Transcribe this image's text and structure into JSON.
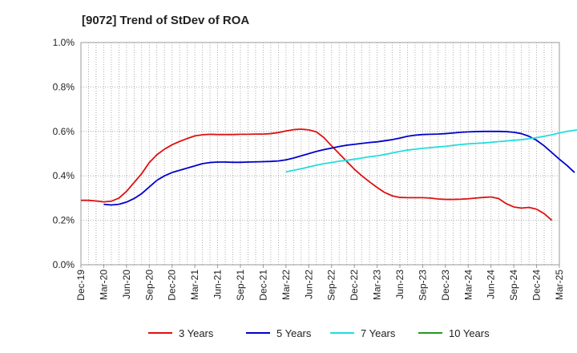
{
  "chart_data": {
    "type": "line",
    "title": "[9072]  Trend of StDev of ROA",
    "xlabel": "",
    "ylabel": "",
    "ylim": [
      0,
      1.0
    ],
    "y_ticks": [
      0,
      0.2,
      0.4,
      0.6,
      0.8,
      1.0
    ],
    "y_tick_labels": [
      "0.0%",
      "0.2%",
      "0.4%",
      "0.6%",
      "0.8%",
      "1.0%"
    ],
    "x_tick_labels": [
      "Dec-19",
      "Mar-20",
      "Jun-20",
      "Sep-20",
      "Dec-20",
      "Mar-21",
      "Jun-21",
      "Sep-21",
      "Dec-21",
      "Mar-22",
      "Jun-22",
      "Sep-22",
      "Dec-22",
      "Mar-23",
      "Jun-23",
      "Sep-23",
      "Dec-23",
      "Mar-24",
      "Jun-24",
      "Sep-24",
      "Dec-24",
      "Mar-25"
    ],
    "grid": true,
    "legend_position": "bottom",
    "series": [
      {
        "name": "3 Years",
        "color": "#dd1111",
        "start_month": 0,
        "values": [
          0.29,
          0.29,
          0.287,
          0.283,
          0.286,
          0.3,
          0.33,
          0.37,
          0.41,
          0.46,
          0.495,
          0.52,
          0.54,
          0.555,
          0.568,
          0.58,
          0.585,
          0.587,
          0.586,
          0.586,
          0.586,
          0.587,
          0.587,
          0.588,
          0.588,
          0.59,
          0.595,
          0.602,
          0.608,
          0.61,
          0.607,
          0.598,
          0.572,
          0.535,
          0.5,
          0.465,
          0.43,
          0.4,
          0.373,
          0.348,
          0.325,
          0.31,
          0.303,
          0.302,
          0.302,
          0.302,
          0.3,
          0.296,
          0.294,
          0.294,
          0.295,
          0.297,
          0.3,
          0.303,
          0.305,
          0.298,
          0.275,
          0.26,
          0.255,
          0.258,
          0.25,
          0.23,
          0.2
        ]
      },
      {
        "name": "5 Years",
        "color": "#0000cc",
        "start_month": 3,
        "values": [
          0.272,
          0.269,
          0.272,
          0.282,
          0.298,
          0.32,
          0.35,
          0.38,
          0.4,
          0.415,
          0.425,
          0.435,
          0.445,
          0.455,
          0.46,
          0.462,
          0.462,
          0.461,
          0.461,
          0.462,
          0.463,
          0.464,
          0.465,
          0.467,
          0.472,
          0.48,
          0.49,
          0.5,
          0.51,
          0.518,
          0.525,
          0.532,
          0.538,
          0.542,
          0.546,
          0.55,
          0.553,
          0.558,
          0.563,
          0.57,
          0.578,
          0.583,
          0.586,
          0.587,
          0.588,
          0.59,
          0.593,
          0.596,
          0.598,
          0.599,
          0.6,
          0.6,
          0.6,
          0.599,
          0.596,
          0.59,
          0.578,
          0.56,
          0.535,
          0.505,
          0.475,
          0.447,
          0.415
        ]
      },
      {
        "name": "7 Years",
        "color": "#22dddd",
        "start_month": 27,
        "values": [
          0.418,
          0.425,
          0.432,
          0.44,
          0.448,
          0.455,
          0.46,
          0.466,
          0.47,
          0.475,
          0.48,
          0.486,
          0.49,
          0.496,
          0.503,
          0.51,
          0.516,
          0.52,
          0.524,
          0.527,
          0.53,
          0.533,
          0.537,
          0.541,
          0.544,
          0.546,
          0.548,
          0.551,
          0.554,
          0.557,
          0.56,
          0.563,
          0.567,
          0.572,
          0.578,
          0.585,
          0.593,
          0.6,
          0.605,
          0.608,
          0.61
        ]
      },
      {
        "name": "10 Years",
        "color": "#229922",
        "start_month": 0,
        "values": []
      }
    ]
  }
}
